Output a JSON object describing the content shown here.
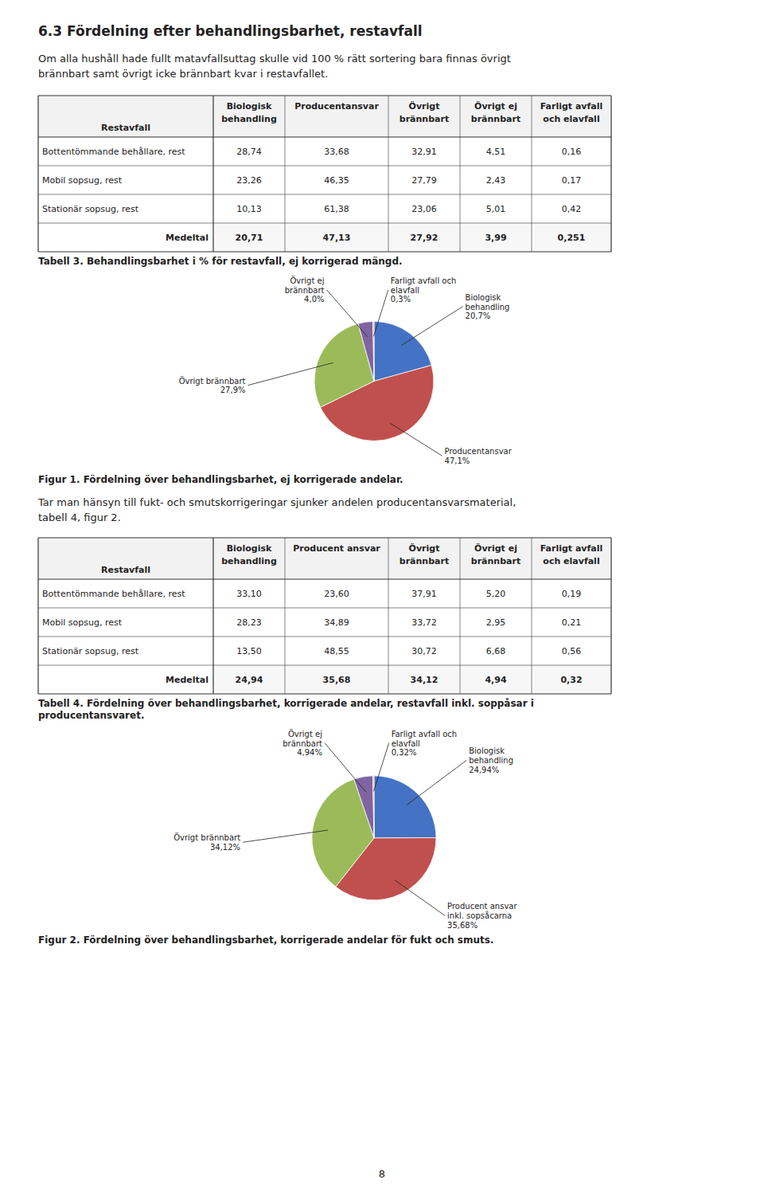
{
  "page": {
    "title": "6.3   Fördelning efter behandlingsbarhet, restavfall",
    "intro_text": "Om alla hushåll hade fullt matavfallsuttag skulle vid 100 % rätt sortering bara finnas övrigt\nbrännbart samt övrigt icke brännbart kvar i restavfallet.",
    "middle_text": "Tar man hänsyn till fukt- och smutskorrigeringar sjunker andelen producentansvarsmaterial,\ntabell 4, figur 2.",
    "page_number": "8"
  },
  "chart_data": [
    {
      "type": "table",
      "title": "Tabell 3. Behandlingsbarhet i % för restavfall, ej korrigerad mängd.",
      "xlabel": "Restavfall",
      "categories": [
        "Bottentömmande behållare, rest",
        "Mobil sopsug, rest",
        "Stationär sopsug, rest",
        "Medeltal"
      ],
      "series": [
        {
          "name": "Biologisk\nbehandling",
          "values": [
            28.74,
            23.26,
            10.13,
            20.71
          ],
          "value_labels": [
            "28,74",
            "23,26",
            "10,13",
            "20,71"
          ]
        },
        {
          "name": "Producentansvar",
          "values": [
            33.68,
            46.35,
            61.38,
            47.13
          ],
          "value_labels": [
            "33,68",
            "46,35",
            "61,38",
            "47,13"
          ]
        },
        {
          "name": "Övrigt\nbrännbart",
          "values": [
            32.91,
            27.79,
            23.06,
            27.92
          ],
          "value_labels": [
            "32,91",
            "27,79",
            "23,06",
            "27,92"
          ]
        },
        {
          "name": "Övrigt ej\nbrännbart",
          "values": [
            4.51,
            2.43,
            5.01,
            3.99
          ],
          "value_labels": [
            "4,51",
            "2,43",
            "5,01",
            "3,99"
          ]
        },
        {
          "name": "Farligt avfall\noch elavfall",
          "values": [
            0.16,
            0.17,
            0.42,
            0.251
          ],
          "value_labels": [
            "0,16",
            "0,17",
            "0,42",
            "0,251"
          ]
        }
      ],
      "data_labels": true
    },
    {
      "type": "pie",
      "title": "Figur 1. Fördelning över behandlingsbarhet, ej korrigerade andelar.",
      "categories": [
        "Biologisk\nbehandling",
        "Producentansvar",
        "Övrigt brännbart",
        "Övrigt ej\nbrännbart",
        "Farligt avfall och\nelavfall"
      ],
      "values": [
        20.7,
        47.1,
        27.9,
        4.0,
        0.3
      ],
      "value_labels": [
        "20,7%",
        "47,1%",
        "27,9%",
        "4,0%",
        "0,3%"
      ],
      "colors": [
        "#4472C4",
        "#C0504D",
        "#9BBB59",
        "#8064A2",
        "#F79646"
      ],
      "data_labels": true
    },
    {
      "type": "table",
      "title": "Tabell 4. Fördelning över behandlingsbarhet, korrigerade andelar, restavfall  inkl. soppåsar i\nproducentansvaret.",
      "xlabel": "Restavfall",
      "categories": [
        "Bottentömmande behållare, rest",
        "Mobil sopsug, rest",
        "Stationär sopsug, rest",
        "Medeltal"
      ],
      "series": [
        {
          "name": "Biologisk\nbehandling",
          "values": [
            33.1,
            28.23,
            13.5,
            24.94
          ],
          "value_labels": [
            "33,10",
            "28,23",
            "13,50",
            "24,94"
          ]
        },
        {
          "name": "Producent ansvar",
          "values": [
            23.6,
            34.89,
            48.55,
            35.68
          ],
          "value_labels": [
            "23,60",
            "34,89",
            "48,55",
            "35,68"
          ]
        },
        {
          "name": "Övrigt\nbrännbart",
          "values": [
            37.91,
            33.72,
            30.72,
            34.12
          ],
          "value_labels": [
            "37,91",
            "33,72",
            "30,72",
            "34,12"
          ]
        },
        {
          "name": "Övrigt ej\nbrännbart",
          "values": [
            5.2,
            2.95,
            6.68,
            4.94
          ],
          "value_labels": [
            "5,20",
            "2,95",
            "6,68",
            "4,94"
          ]
        },
        {
          "name": "Farligt avfall\noch elavfall",
          "values": [
            0.19,
            0.21,
            0.56,
            0.32
          ],
          "value_labels": [
            "0,19",
            "0,21",
            "0,56",
            "0,32"
          ]
        }
      ],
      "data_labels": true
    },
    {
      "type": "pie",
      "title": "Figur 2. Fördelning över behandlingsbarhet, korrigerade andelar för fukt och smuts.",
      "categories": [
        "Biologisk\nbehandling",
        "Producent ansvar\ninkl. sopsåcarna",
        "Övrigt brännbart",
        "Övrigt ej\nbrännbart",
        "Farligt avfall och\nelavfall"
      ],
      "values": [
        24.94,
        35.68,
        34.12,
        4.94,
        0.32
      ],
      "value_labels": [
        "24,94%",
        "35,68%",
        "34,12%",
        "4,94%",
        "0,32%"
      ],
      "colors": [
        "#4472C4",
        "#C0504D",
        "#9BBB59",
        "#8064A2",
        "#F79646"
      ],
      "data_labels": true
    }
  ]
}
